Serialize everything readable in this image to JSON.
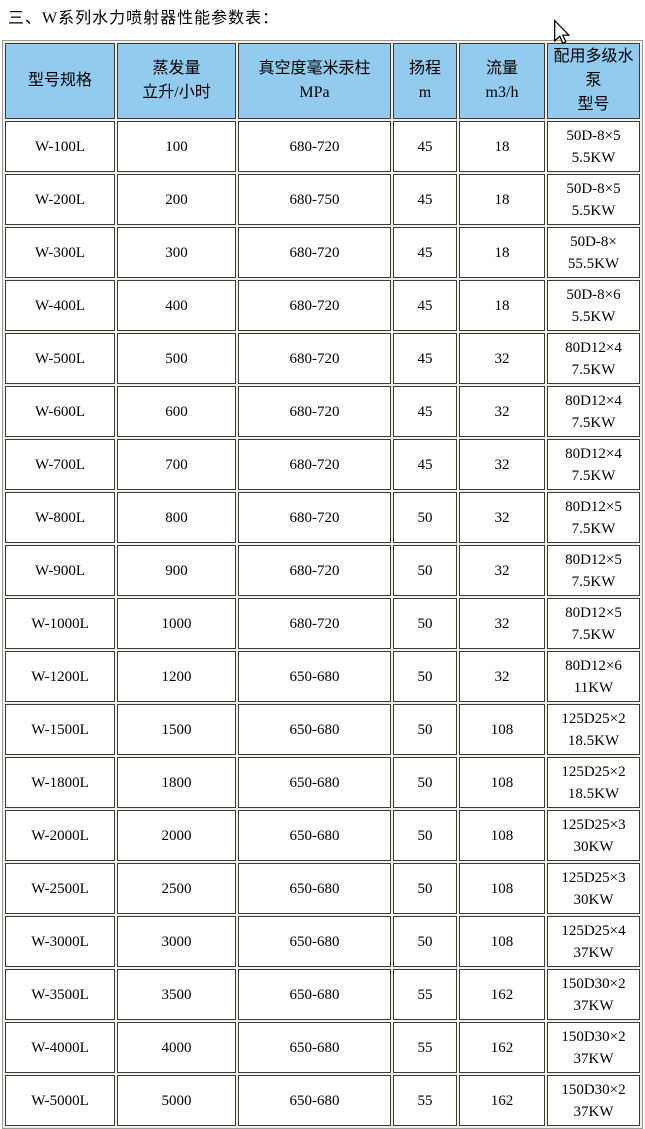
{
  "page": {
    "title": "三、W系列水力喷射器性能参数表："
  },
  "colors": {
    "page_bg": "#FFFFFF",
    "header_bg": "#93CBEE",
    "cell_bg": "#FFFFFF",
    "table_gap_bg": "#F1F0EA",
    "cell_border": "#3B3B35",
    "table_outer_border": "#9C9C96",
    "text": "#000000"
  },
  "cursor": {
    "icon": "arrow-cursor"
  },
  "table": {
    "headers": [
      {
        "lines": [
          "型号规格"
        ]
      },
      {
        "lines": [
          "蒸发量",
          "立升/小时"
        ]
      },
      {
        "lines": [
          "真空度毫米汞柱",
          "MPa"
        ]
      },
      {
        "lines": [
          "扬程",
          "m"
        ]
      },
      {
        "lines": [
          "流量",
          "m3/h"
        ]
      },
      {
        "lines": [
          "配用多级水",
          "泵",
          "型号"
        ]
      }
    ],
    "rows": [
      {
        "model": "W-100L",
        "evaporation": "100",
        "vacuum": "680-720",
        "head": "45",
        "flow": "18",
        "pump": [
          "50D-8×5",
          "5.5KW"
        ]
      },
      {
        "model": "W-200L",
        "evaporation": "200",
        "vacuum": "680-750",
        "head": "45",
        "flow": "18",
        "pump": [
          "50D-8×5",
          "5.5KW"
        ]
      },
      {
        "model": "W-300L",
        "evaporation": "300",
        "vacuum": "680-720",
        "head": "45",
        "flow": "18",
        "pump": [
          "50D-8×",
          "55.5KW"
        ]
      },
      {
        "model": "W-400L",
        "evaporation": "400",
        "vacuum": "680-720",
        "head": "45",
        "flow": "18",
        "pump": [
          "50D-8×6",
          "5.5KW"
        ]
      },
      {
        "model": "W-500L",
        "evaporation": "500",
        "vacuum": "680-720",
        "head": "45",
        "flow": "32",
        "pump": [
          "80D12×4",
          "7.5KW"
        ]
      },
      {
        "model": "W-600L",
        "evaporation": "600",
        "vacuum": "680-720",
        "head": "45",
        "flow": "32",
        "pump": [
          "80D12×4",
          "7.5KW"
        ]
      },
      {
        "model": "W-700L",
        "evaporation": "700",
        "vacuum": "680-720",
        "head": "45",
        "flow": "32",
        "pump": [
          "80D12×4",
          "7.5KW"
        ]
      },
      {
        "model": "W-800L",
        "evaporation": "800",
        "vacuum": "680-720",
        "head": "50",
        "flow": "32",
        "pump": [
          "80D12×5",
          "7.5KW"
        ]
      },
      {
        "model": "W-900L",
        "evaporation": "900",
        "vacuum": "680-720",
        "head": "50",
        "flow": "32",
        "pump": [
          "80D12×5",
          "7.5KW"
        ]
      },
      {
        "model": "W-1000L",
        "evaporation": "1000",
        "vacuum": "680-720",
        "head": "50",
        "flow": "32",
        "pump": [
          "80D12×5",
          "7.5KW"
        ]
      },
      {
        "model": "W-1200L",
        "evaporation": "1200",
        "vacuum": "650-680",
        "head": "50",
        "flow": "32",
        "pump": [
          "80D12×6",
          "11KW"
        ]
      },
      {
        "model": "W-1500L",
        "evaporation": "1500",
        "vacuum": "650-680",
        "head": "50",
        "flow": "108",
        "pump": [
          "125D25×2",
          "18.5KW"
        ]
      },
      {
        "model": "W-1800L",
        "evaporation": "1800",
        "vacuum": "650-680",
        "head": "50",
        "flow": "108",
        "pump": [
          "125D25×2",
          "18.5KW"
        ]
      },
      {
        "model": "W-2000L",
        "evaporation": "2000",
        "vacuum": "650-680",
        "head": "50",
        "flow": "108",
        "pump": [
          "125D25×3",
          "30KW"
        ]
      },
      {
        "model": "W-2500L",
        "evaporation": "2500",
        "vacuum": "650-680",
        "head": "50",
        "flow": "108",
        "pump": [
          "125D25×3",
          "30KW"
        ]
      },
      {
        "model": "W-3000L",
        "evaporation": "3000",
        "vacuum": "650-680",
        "head": "50",
        "flow": "108",
        "pump": [
          "125D25×4",
          "37KW"
        ]
      },
      {
        "model": "W-3500L",
        "evaporation": "3500",
        "vacuum": "650-680",
        "head": "55",
        "flow": "162",
        "pump": [
          "150D30×2",
          "37KW"
        ]
      },
      {
        "model": "W-4000L",
        "evaporation": "4000",
        "vacuum": "650-680",
        "head": "55",
        "flow": "162",
        "pump": [
          "150D30×2",
          "37KW"
        ]
      },
      {
        "model": "W-5000L",
        "evaporation": "5000",
        "vacuum": "650-680",
        "head": "55",
        "flow": "162",
        "pump": [
          "150D30×2",
          "37KW"
        ]
      }
    ]
  }
}
